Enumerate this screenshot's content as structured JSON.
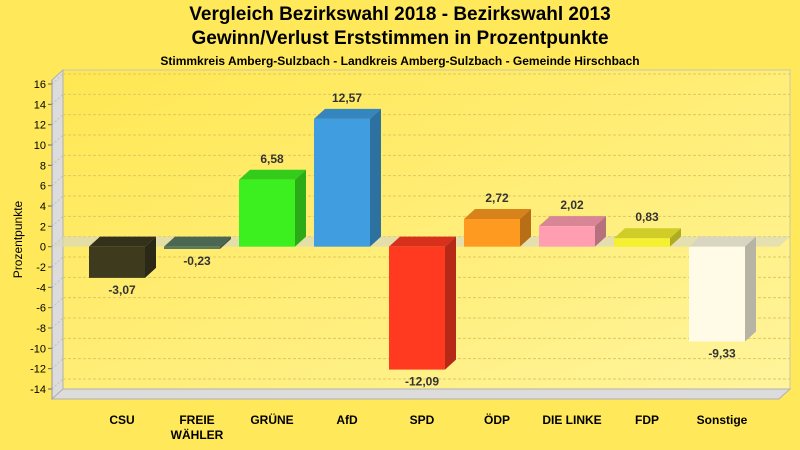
{
  "chart_data": {
    "type": "bar",
    "title": "Vergleich Bezirkswahl 2018 - Bezirkswahl 2013",
    "subtitle": "Gewinn/Verlust Erststimmen in Prozentpunkte",
    "subtitle2": "Stimmkreis Amberg-Sulzbach - Landkreis Amberg-Sulzbach - Gemeinde Hirschbach",
    "xlabel": "",
    "ylabel": "Prozentpunkte",
    "ylim": [
      -14,
      16
    ],
    "yticks": [
      16,
      14,
      12,
      10,
      8,
      6,
      4,
      2,
      0,
      -2,
      -4,
      -6,
      -8,
      -10,
      -12,
      -14
    ],
    "grid": true,
    "categories": [
      "CSU",
      "FREIE WÄHLER",
      "GRÜNE",
      "AfD",
      "SPD",
      "ÖDP",
      "DIE LINKE",
      "FDP",
      "Sonstige"
    ],
    "values": [
      -3.07,
      -0.23,
      6.58,
      12.57,
      -12.09,
      2.72,
      2.02,
      0.83,
      -9.33
    ],
    "labels": [
      "-3,07",
      "-0,23",
      "6,58",
      "12,57",
      "-12,09",
      "2,72",
      "2,02",
      "0,83",
      "-9,33"
    ],
    "colors": [
      "#3d3a1e",
      "#5a7a60",
      "#3cf020",
      "#3f9de0",
      "#ff3a20",
      "#ff9a20",
      "#ff9eb0",
      "#f5f030",
      "#fffbe6"
    ]
  }
}
